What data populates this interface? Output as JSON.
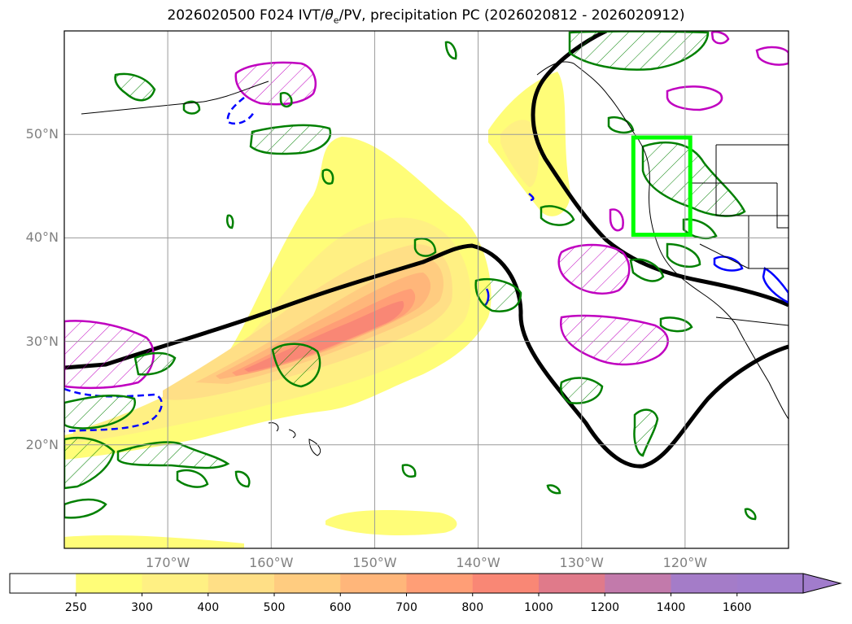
{
  "title": {
    "prefix": "2026020500 F024 IVT/",
    "theta": "θ",
    "theta_sub": "e",
    "suffix": "/PV, precipitation PC (2026020812 - 2026020912)"
  },
  "lat_axis": {
    "values": [
      50,
      40,
      30,
      20
    ],
    "labels": [
      "50°N",
      "40°N",
      "30°N",
      "20°N"
    ]
  },
  "lon_axis": {
    "values": [
      -170,
      -160,
      -150,
      -140,
      -130,
      -120
    ],
    "labels": [
      "170°W",
      "160°W",
      "150°W",
      "140°W",
      "130°W",
      "120°W"
    ]
  },
  "colorbar": {
    "levels": [
      "250",
      "300",
      "400",
      "500",
      "600",
      "700",
      "800",
      "1000",
      "1200",
      "1400",
      "1600"
    ],
    "colors": [
      "#ffffff",
      "#fffd78",
      "#fff083",
      "#ffdf86",
      "#ffcc80",
      "#ffb67a",
      "#ff9e76",
      "#f98775",
      "#e07a8a",
      "#c27aab",
      "#a47cc8",
      "#a17ccc"
    ],
    "extend": "max"
  },
  "colors": {
    "ivt_fill": "#fff27a",
    "pv_contour": "#000000",
    "theta_positive": "#c000c0",
    "theta_negative": "#0000ff",
    "precip_pc": "#008000",
    "target_box": "#00ff00",
    "coastline": "#000000"
  },
  "target_box": {
    "lon_min": -125,
    "lon_max": -119.5,
    "lat_min": 40.3,
    "lat_max": 49.7
  },
  "icons": {
    "colorbar_extend": "triangle-arrow-icon",
    "hatch": "diagonal-hatch-pattern"
  }
}
